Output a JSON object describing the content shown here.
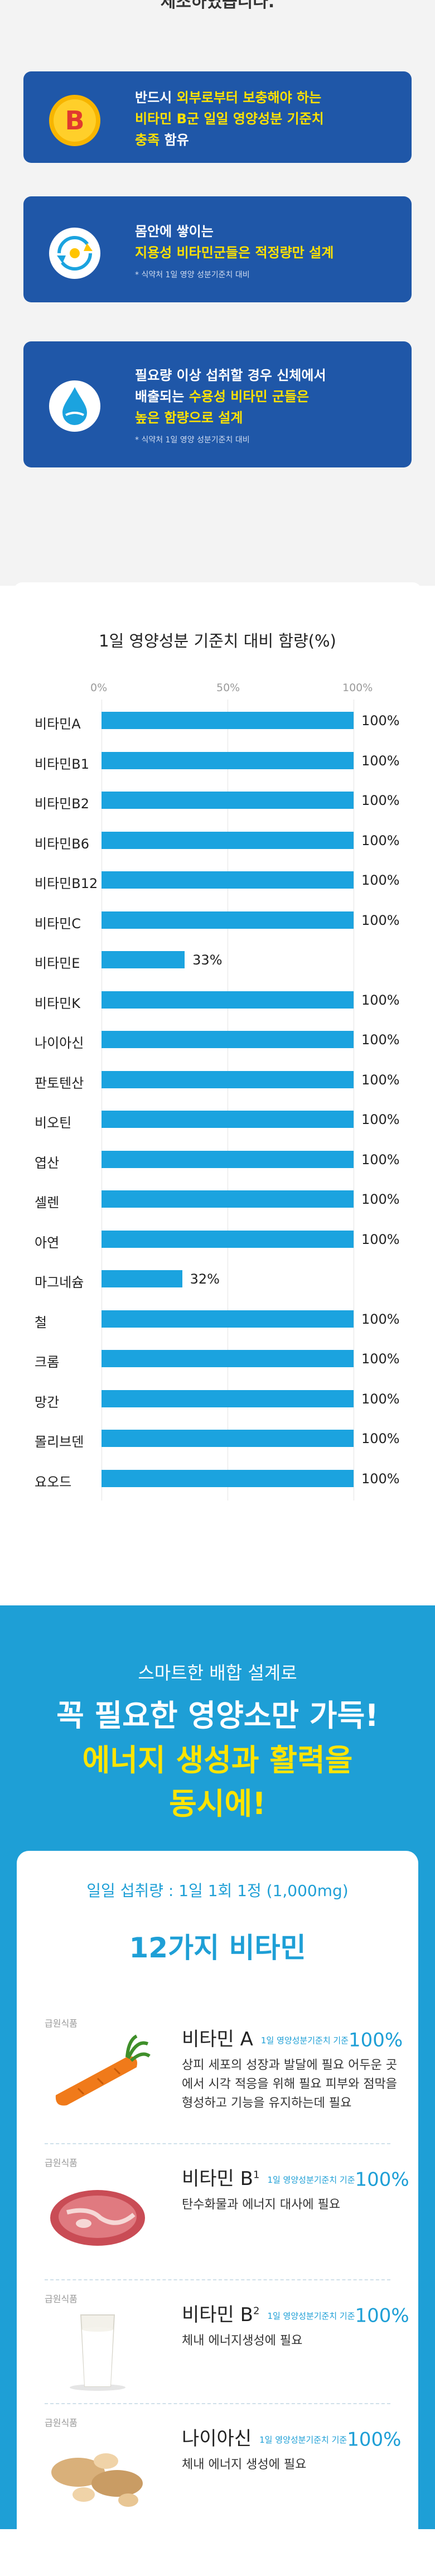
{
  "top_fragment": "제조하였습니다.",
  "cards": [
    {
      "icon": "vitamin-b-coin-icon",
      "icon_letter": "B",
      "lines": [
        [
          {
            "t": "반드시 ",
            "h": false
          },
          {
            "t": "외부로부터 보충해야 하는",
            "h": true
          }
        ],
        [
          {
            "t": "비타민 B군 일일 영양성분 기준치",
            "h": true
          }
        ],
        [
          {
            "t": "충족",
            "h": true
          },
          {
            "t": " 함유",
            "h": false
          }
        ]
      ],
      "note": ""
    },
    {
      "icon": "cycle-arrows-icon",
      "lines": [
        [
          {
            "t": "몸안에 쌓이는",
            "h": false
          }
        ],
        [
          {
            "t": "지용성 비타민군들은 ",
            "h": true
          },
          {
            "t": "적정량만 설계",
            "h": true
          }
        ]
      ],
      "note": "* 식약처 1일 영양 성분기준치 대비"
    },
    {
      "icon": "water-drop-icon",
      "lines": [
        [
          {
            "t": "필요량 이상 섭취할 경우 신체에서",
            "h": false
          }
        ],
        [
          {
            "t": "배출되는 ",
            "h": false
          },
          {
            "t": "수용성 비타민 군들은",
            "h": true
          }
        ],
        [
          {
            "t": "높은 함량으로 설계",
            "h": true
          }
        ]
      ],
      "note": "* 식약처 1일 영양 성분기준치 대비"
    }
  ],
  "chart_data": {
    "type": "bar",
    "orientation": "horizontal",
    "title": "1일 영양성분 기준치 대비 함량(%)",
    "x_ticks": [
      "0%",
      "50%",
      "100%"
    ],
    "xlim": [
      0,
      100
    ],
    "grid": true,
    "categories": [
      "비타민A",
      "비타민B1",
      "비타민B2",
      "비타민B6",
      "비타민B12",
      "비타민C",
      "비타민E",
      "비타민K",
      "나이아신",
      "판토텐산",
      "비오틴",
      "엽산",
      "셀렌",
      "아연",
      "마그네슘",
      "철",
      "크롬",
      "망간",
      "몰리브덴",
      "요오드"
    ],
    "values": [
      100,
      100,
      100,
      100,
      100,
      100,
      33,
      100,
      100,
      100,
      100,
      100,
      100,
      100,
      32,
      100,
      100,
      100,
      100,
      100
    ],
    "value_labels": [
      "100%",
      "100%",
      "100%",
      "100%",
      "100%",
      "100%",
      "33%",
      "100%",
      "100%",
      "100%",
      "100%",
      "100%",
      "100%",
      "100%",
      "32%",
      "100%",
      "100%",
      "100%",
      "100%",
      "100%"
    ],
    "bar_color": "#1ba3df"
  },
  "blue_section": {
    "subtitle": "스마트한 배합 설계로",
    "headline_1": "꼭 필요한 영양소만 가득!",
    "headline_2": "에너지 생성과 활력을",
    "headline_3": "동시에!",
    "intake": "일일 섭취량 : 1일 1회 1정 (1,000mg)",
    "vitamins_title": "12가지 비타민",
    "items": [
      {
        "tag": "급원식품",
        "pic": "carrot-icon",
        "name": "비타민 A",
        "sup": "",
        "std": "1일 영양성분기준치 기준",
        "pct": "100%",
        "desc": "상피 세포의 성장과 발달에 필요 어두운 곳에서 시각 적응을 위해 필요 피부와 점막을 형성하고 기능을 유지하는데 필요"
      },
      {
        "tag": "급원식품",
        "pic": "pork-meat-icon",
        "name": "비타민 B",
        "sup": "1",
        "std": "1일 영양성분기준치 기준",
        "pct": "100%",
        "desc": "탄수화물과 에너지 대사에 필요"
      },
      {
        "tag": "급원식품",
        "pic": "milk-glass-icon",
        "name": "비타민 B",
        "sup": "2",
        "std": "1일 영양성분기준치 기준",
        "pct": "100%",
        "desc": "체내 에너지생성에 필요"
      },
      {
        "tag": "급원식품",
        "pic": "peanut-icon",
        "name": "나이아신",
        "sup": "",
        "std": "1일 영양성분기준치 기준",
        "pct": "100%",
        "desc": "체내 에너지 생성에 필요"
      }
    ]
  }
}
